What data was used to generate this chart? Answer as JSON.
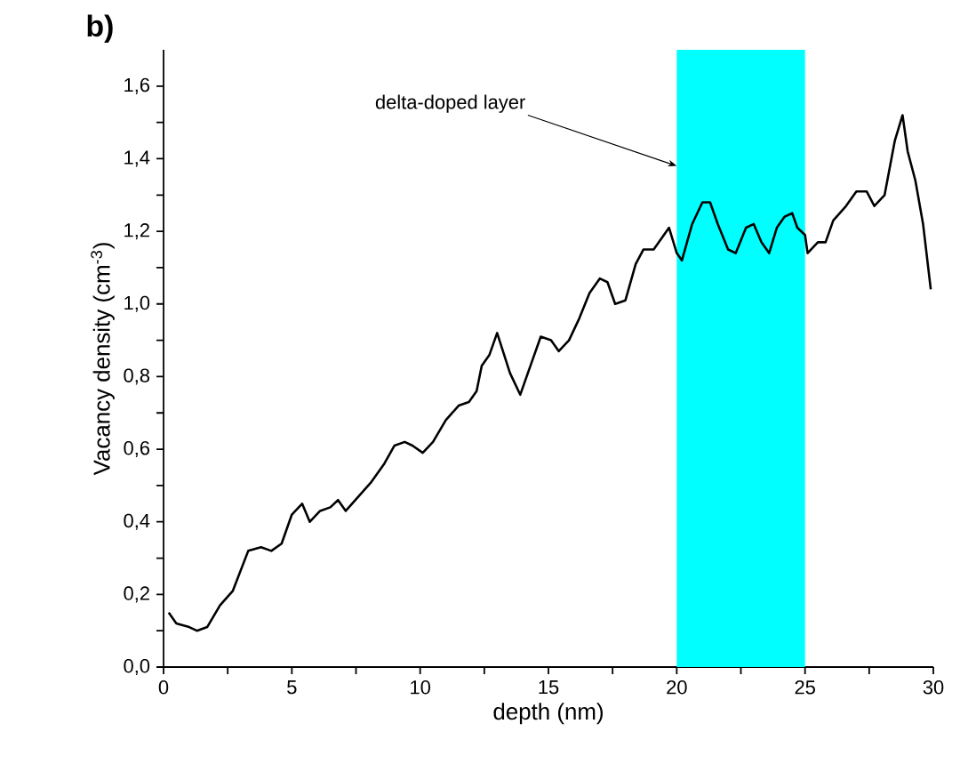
{
  "chart_data": {
    "type": "line",
    "title": "b)",
    "xlabel": "depth (nm)",
    "ylabel": "Vacancy density (cm$^{-3}$)",
    "x": [
      0.2,
      0.5,
      1.0,
      1.3,
      1.7,
      2.2,
      2.7,
      3.3,
      3.8,
      4.2,
      4.6,
      5.0,
      5.4,
      5.7,
      6.1,
      6.5,
      6.8,
      7.1,
      7.6,
      8.1,
      8.6,
      9.0,
      9.4,
      9.7,
      10.1,
      10.5,
      11.0,
      11.5,
      11.9,
      12.2,
      12.4,
      12.7,
      13.0,
      13.5,
      13.9,
      14.3,
      14.7,
      15.1,
      15.4,
      15.8,
      16.2,
      16.6,
      17.0,
      17.3,
      17.6,
      18.0,
      18.4,
      18.7,
      19.1,
      19.4,
      19.7,
      20.0,
      20.2,
      20.6,
      21.0,
      21.3,
      21.6,
      22.0,
      22.3,
      22.7,
      23.0,
      23.3,
      23.6,
      23.9,
      24.2,
      24.5,
      24.7,
      25.0,
      25.1,
      25.5,
      25.8,
      26.1,
      26.6,
      27.0,
      27.4,
      27.7,
      28.1,
      28.5,
      28.8,
      29.0,
      29.3,
      29.6,
      29.9
    ],
    "values": [
      0.15,
      0.12,
      0.11,
      0.1,
      0.11,
      0.17,
      0.21,
      0.32,
      0.33,
      0.32,
      0.34,
      0.42,
      0.45,
      0.4,
      0.43,
      0.44,
      0.46,
      0.43,
      0.47,
      0.51,
      0.56,
      0.61,
      0.62,
      0.61,
      0.59,
      0.62,
      0.68,
      0.72,
      0.73,
      0.76,
      0.83,
      0.86,
      0.92,
      0.81,
      0.75,
      0.83,
      0.91,
      0.9,
      0.87,
      0.9,
      0.96,
      1.03,
      1.07,
      1.06,
      1.0,
      1.01,
      1.11,
      1.15,
      1.15,
      1.18,
      1.21,
      1.14,
      1.12,
      1.22,
      1.28,
      1.28,
      1.22,
      1.15,
      1.14,
      1.21,
      1.22,
      1.17,
      1.14,
      1.21,
      1.24,
      1.25,
      1.21,
      1.19,
      1.14,
      1.17,
      1.17,
      1.23,
      1.27,
      1.31,
      1.31,
      1.27,
      1.3,
      1.45,
      1.52,
      1.42,
      1.34,
      1.22,
      1.04
    ],
    "color": "#000000",
    "marker": "none",
    "line_style": "solid",
    "xlim": [
      0,
      30
    ],
    "ylim": [
      0,
      1.7
    ],
    "xticks": [
      0,
      {
        "value": 2.5,
        "label": null
      },
      5,
      {
        "value": 7.5,
        "label": null
      },
      10,
      {
        "value": 12.5,
        "label": null
      },
      15,
      {
        "value": 17.5,
        "label": null
      },
      20,
      {
        "value": 22.5,
        "label": null
      },
      25,
      {
        "value": 27.5,
        "label": null
      },
      30
    ],
    "yticks": [
      {
        "value": 0,
        "label": "0,0"
      },
      {
        "value": 0.1,
        "label": null
      },
      {
        "value": 0.2,
        "label": "0,2"
      },
      {
        "value": 0.3,
        "label": null
      },
      {
        "value": 0.4,
        "label": "0,4"
      },
      {
        "value": 0.5,
        "label": null
      },
      {
        "value": 0.6,
        "label": "0,6"
      },
      {
        "value": 0.7,
        "label": null
      },
      {
        "value": 0.8,
        "label": "0,8"
      },
      {
        "value": 0.9,
        "label": null
      },
      {
        "value": 1.0,
        "label": "1,0"
      },
      {
        "value": 1.1,
        "label": null
      },
      {
        "value": 1.2,
        "label": "1,2"
      },
      {
        "value": 1.3,
        "label": null
      },
      {
        "value": 1.4,
        "label": "1,4"
      },
      {
        "value": 1.5,
        "label": null
      },
      {
        "value": 1.6,
        "label": "1,6"
      }
    ],
    "bands": [
      {
        "axis": "x",
        "from": 20,
        "to": 25,
        "color": "#00ffff"
      }
    ],
    "annotations": [
      {
        "text": "delta-doped layer",
        "x": 20,
        "y": 1.38
      }
    ]
  }
}
